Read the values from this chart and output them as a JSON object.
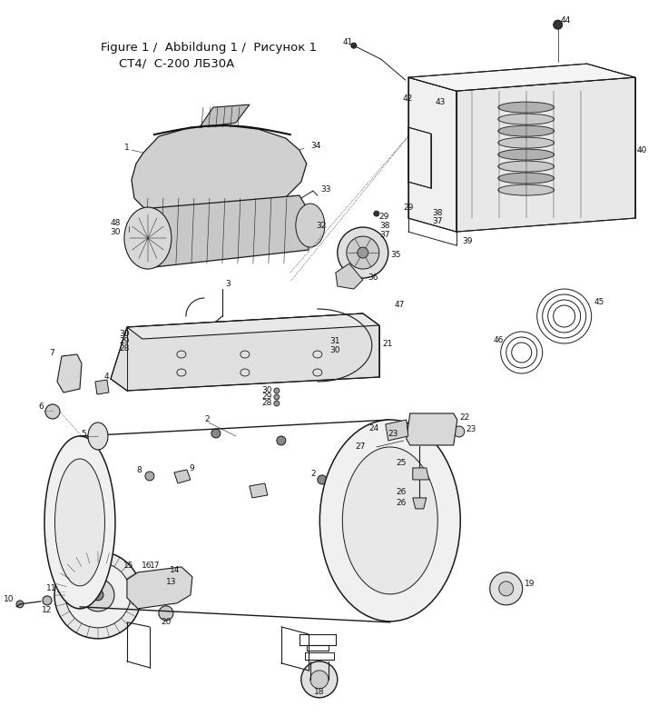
{
  "title_line1": "Figure 1 /  Abbildung 1 /  Рисунок 1",
  "title_line2": "СТ4/  C-200 ЛБ30A",
  "bg_color": "#ffffff",
  "line_color": "#1a1a1a",
  "figsize": [
    7.14,
    7.88
  ],
  "dpi": 100
}
